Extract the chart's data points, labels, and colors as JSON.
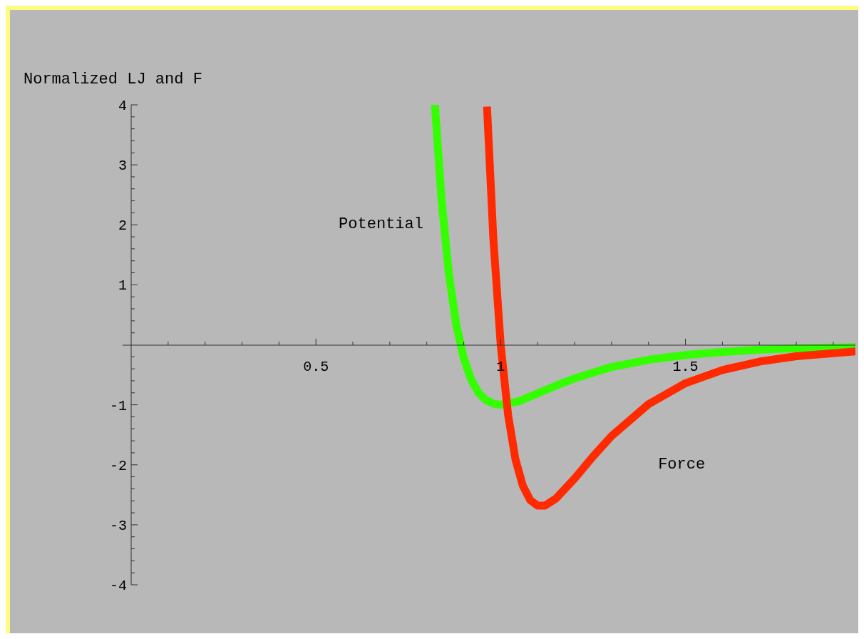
{
  "chart_data": {
    "type": "line",
    "ylabel": "Normalized LJ and F",
    "xlim": [
      0,
      1.96
    ],
    "ylim": [
      -4,
      4
    ],
    "xticks": [
      {
        "value": 0.1,
        "label": null
      },
      {
        "value": 0.2,
        "label": null
      },
      {
        "value": 0.3,
        "label": null
      },
      {
        "value": 0.4,
        "label": null
      },
      0.5,
      {
        "value": 0.6,
        "label": null
      },
      {
        "value": 0.7,
        "label": null
      },
      {
        "value": 0.8,
        "label": null
      },
      {
        "value": 0.9,
        "label": null
      },
      1,
      {
        "value": 1.1,
        "label": null
      },
      {
        "value": 1.2,
        "label": null
      },
      {
        "value": 1.3,
        "label": null
      },
      {
        "value": 1.4,
        "label": null
      },
      1.5,
      {
        "value": 1.6,
        "label": null
      },
      {
        "value": 1.7,
        "label": null
      },
      {
        "value": 1.8,
        "label": null
      },
      {
        "value": 1.9,
        "label": null
      }
    ],
    "yticks": [
      -4,
      {
        "value": -3.8,
        "label": null
      },
      {
        "value": -3.6,
        "label": null
      },
      {
        "value": -3.4,
        "label": null
      },
      {
        "value": -3.2,
        "label": null
      },
      -3,
      {
        "value": -2.8,
        "label": null
      },
      {
        "value": -2.6,
        "label": null
      },
      {
        "value": -2.4,
        "label": null
      },
      {
        "value": -2.2,
        "label": null
      },
      -2,
      {
        "value": -1.8,
        "label": null
      },
      {
        "value": -1.6,
        "label": null
      },
      {
        "value": -1.4,
        "label": null
      },
      {
        "value": -1.2,
        "label": null
      },
      -1,
      {
        "value": -0.8,
        "label": null
      },
      {
        "value": -0.6,
        "label": null
      },
      {
        "value": -0.4,
        "label": null
      },
      {
        "value": -0.2,
        "label": null
      },
      {
        "value": 0.2,
        "label": null
      },
      {
        "value": 0.4,
        "label": null
      },
      {
        "value": 0.6,
        "label": null
      },
      {
        "value": 0.8,
        "label": null
      },
      1,
      {
        "value": 1.2,
        "label": null
      },
      {
        "value": 1.4,
        "label": null
      },
      {
        "value": 1.6,
        "label": null
      },
      {
        "value": 1.8,
        "label": null
      },
      2,
      {
        "value": 2.2,
        "label": null
      },
      {
        "value": 2.4,
        "label": null
      },
      {
        "value": 2.6,
        "label": null
      },
      {
        "value": 2.8,
        "label": null
      },
      3,
      {
        "value": 3.2,
        "label": null
      },
      {
        "value": 3.4,
        "label": null
      },
      {
        "value": 3.6,
        "label": null
      },
      {
        "value": 3.8,
        "label": null
      },
      4
    ],
    "marker": "none",
    "line_style": "solid",
    "series": [
      {
        "name": "Potential",
        "color": "#33ff00",
        "x": [
          0.822,
          0.84,
          0.86,
          0.88,
          0.9,
          0.92,
          0.94,
          0.96,
          0.98,
          1.0,
          1.05,
          1.1,
          1.15,
          1.2,
          1.3,
          1.4,
          1.5,
          1.6,
          1.7,
          1.8,
          1.96
        ],
        "values": [
          4.0,
          2.41,
          1.17,
          0.33,
          -0.22,
          -0.58,
          -0.8,
          -0.92,
          -0.98,
          -1.0,
          -0.94,
          -0.81,
          -0.68,
          -0.56,
          -0.37,
          -0.25,
          -0.17,
          -0.12,
          -0.08,
          -0.06,
          -0.04
        ]
      },
      {
        "name": "Force",
        "color": "#ff2a00",
        "x": [
          0.963,
          0.98,
          1.0,
          1.02,
          1.04,
          1.06,
          1.08,
          1.1,
          1.12,
          1.15,
          1.2,
          1.25,
          1.3,
          1.4,
          1.5,
          1.6,
          1.7,
          1.8,
          1.96
        ],
        "values": [
          3.97,
          1.78,
          0,
          -1.17,
          -1.91,
          -2.35,
          -2.59,
          -2.68,
          -2.68,
          -2.56,
          -2.23,
          -1.86,
          -1.52,
          -0.99,
          -0.64,
          -0.42,
          -0.28,
          -0.19,
          -0.11
        ]
      }
    ]
  }
}
